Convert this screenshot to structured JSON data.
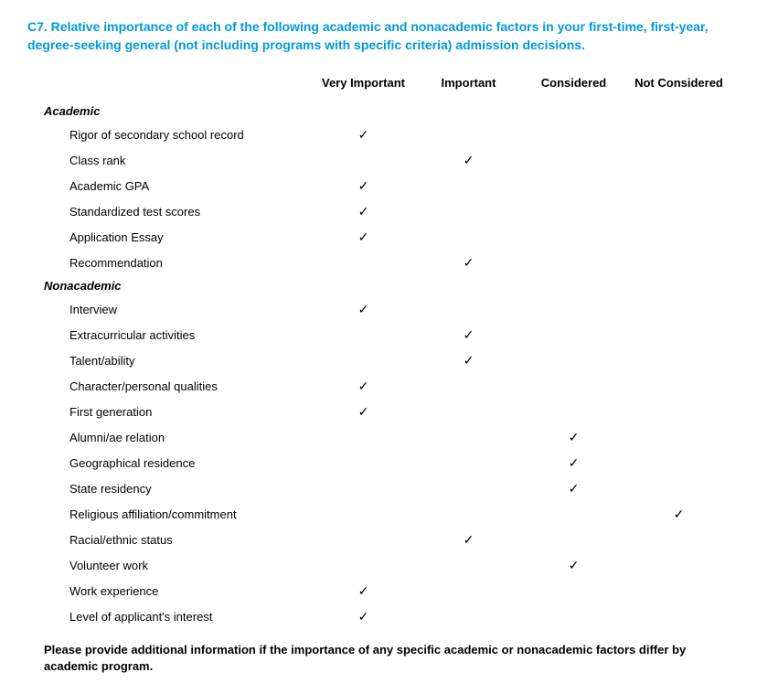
{
  "heading": "C7. Relative importance of each of the following academic and nonacademic factors in your first-time, first-year, degree-seeking general (not including programs with specific criteria) admission decisions.",
  "columns": [
    "Very Important",
    "Important",
    "Considered",
    "Not Considered"
  ],
  "checkmark": "✓",
  "sections": [
    {
      "title": "Academic",
      "rows": [
        {
          "label": "Rigor of secondary school record",
          "checks": [
            true,
            false,
            false,
            false
          ]
        },
        {
          "label": "Class rank",
          "checks": [
            false,
            true,
            false,
            false
          ]
        },
        {
          "label": "Academic GPA",
          "checks": [
            true,
            false,
            false,
            false
          ]
        },
        {
          "label": "Standardized test scores",
          "checks": [
            true,
            false,
            false,
            false
          ]
        },
        {
          "label": "Application Essay",
          "checks": [
            true,
            false,
            false,
            false
          ]
        },
        {
          "label": "Recommendation",
          "checks": [
            false,
            true,
            false,
            false
          ]
        }
      ]
    },
    {
      "title": "Nonacademic",
      "rows": [
        {
          "label": "Interview",
          "checks": [
            true,
            false,
            false,
            false
          ]
        },
        {
          "label": "Extracurricular activities",
          "checks": [
            false,
            true,
            false,
            false
          ]
        },
        {
          "label": "Talent/ability",
          "checks": [
            false,
            true,
            false,
            false
          ]
        },
        {
          "label": "Character/personal qualities",
          "checks": [
            true,
            false,
            false,
            false
          ]
        },
        {
          "label": "First generation",
          "checks": [
            true,
            false,
            false,
            false
          ]
        },
        {
          "label": "Alumni/ae relation",
          "checks": [
            false,
            false,
            true,
            false
          ]
        },
        {
          "label": "Geographical residence",
          "checks": [
            false,
            false,
            true,
            false
          ]
        },
        {
          "label": "State residency",
          "checks": [
            false,
            false,
            true,
            false
          ]
        },
        {
          "label": "Religious affiliation/commitment",
          "checks": [
            false,
            false,
            false,
            true
          ]
        },
        {
          "label": "Racial/ethnic status",
          "checks": [
            false,
            true,
            false,
            false
          ]
        },
        {
          "label": "Volunteer work",
          "checks": [
            false,
            false,
            true,
            false
          ]
        },
        {
          "label": "Work experience",
          "checks": [
            true,
            false,
            false,
            false
          ]
        },
        {
          "label": "Level of applicant's interest",
          "checks": [
            true,
            false,
            false,
            false
          ]
        }
      ]
    }
  ],
  "footerNote": "Please provide additional information if the importance of any specific academic or nonacademic factors differ by academic program."
}
